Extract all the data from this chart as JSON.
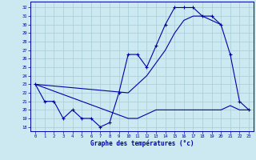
{
  "x_all": [
    0,
    1,
    2,
    3,
    4,
    5,
    6,
    7,
    8,
    9,
    10,
    11,
    12,
    13,
    14,
    15,
    16,
    17,
    18,
    19,
    20,
    21,
    22,
    23
  ],
  "line_measured": [
    23,
    21,
    21,
    19,
    20,
    19,
    19,
    18,
    18.5,
    22,
    26.5,
    26.5,
    25,
    27.5,
    30,
    32,
    32,
    32,
    31,
    31,
    30,
    26.5,
    21,
    20
  ],
  "x_upper": [
    0,
    10,
    11,
    12,
    13,
    14,
    15,
    16,
    17,
    18,
    19,
    20
  ],
  "y_upper": [
    23,
    22,
    23,
    24,
    25.5,
    27,
    29,
    30.5,
    31,
    31,
    30.5,
    30
  ],
  "x_lower": [
    0,
    10,
    11,
    12,
    13,
    14,
    15,
    16,
    17,
    18,
    19,
    20,
    21,
    22,
    23
  ],
  "y_lower": [
    23,
    19,
    19,
    19.5,
    20,
    20,
    20,
    20,
    20,
    20,
    20,
    20,
    20.5,
    20,
    20
  ],
  "ylim": [
    17.5,
    32.7
  ],
  "yticks": [
    18,
    19,
    20,
    21,
    22,
    23,
    24,
    25,
    26,
    27,
    28,
    29,
    30,
    31,
    32
  ],
  "xticks": [
    0,
    1,
    2,
    3,
    4,
    5,
    6,
    7,
    8,
    9,
    10,
    11,
    12,
    13,
    14,
    15,
    16,
    17,
    18,
    19,
    20,
    21,
    22,
    23
  ],
  "xlabel": "Graphe des températures (°c)",
  "line_color": "#0000aa",
  "bg_color": "#cce8f0",
  "grid_color": "#a8ccd8",
  "marker": "+"
}
